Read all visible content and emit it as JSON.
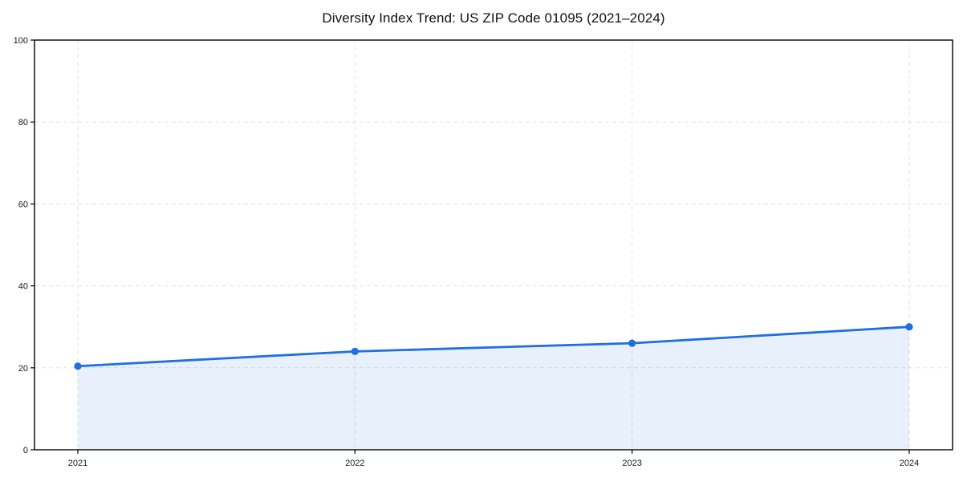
{
  "chart_data": {
    "type": "line",
    "title": "Diversity Index Trend: US ZIP Code 01095 (2021–2024)",
    "categories": [
      "2021",
      "2022",
      "2023",
      "2024"
    ],
    "series": [
      {
        "name": "Diversity Index",
        "values": [
          20.4,
          24.0,
          26.0,
          30.0
        ]
      }
    ],
    "xlabel": "",
    "ylabel": "",
    "ylim": [
      0,
      100
    ],
    "yticks": [
      0,
      20,
      40,
      60,
      80,
      100
    ],
    "grid": "dashed gridlines on both axes",
    "legend_position": "none",
    "area_fill": true,
    "markers": true,
    "colors": {
      "line": "#1f6fe0",
      "fill": "rgba(31, 111, 224, 0.10)",
      "grid": "#e3e3e3",
      "axis": "#000000",
      "text": "#1a1a1a"
    }
  }
}
